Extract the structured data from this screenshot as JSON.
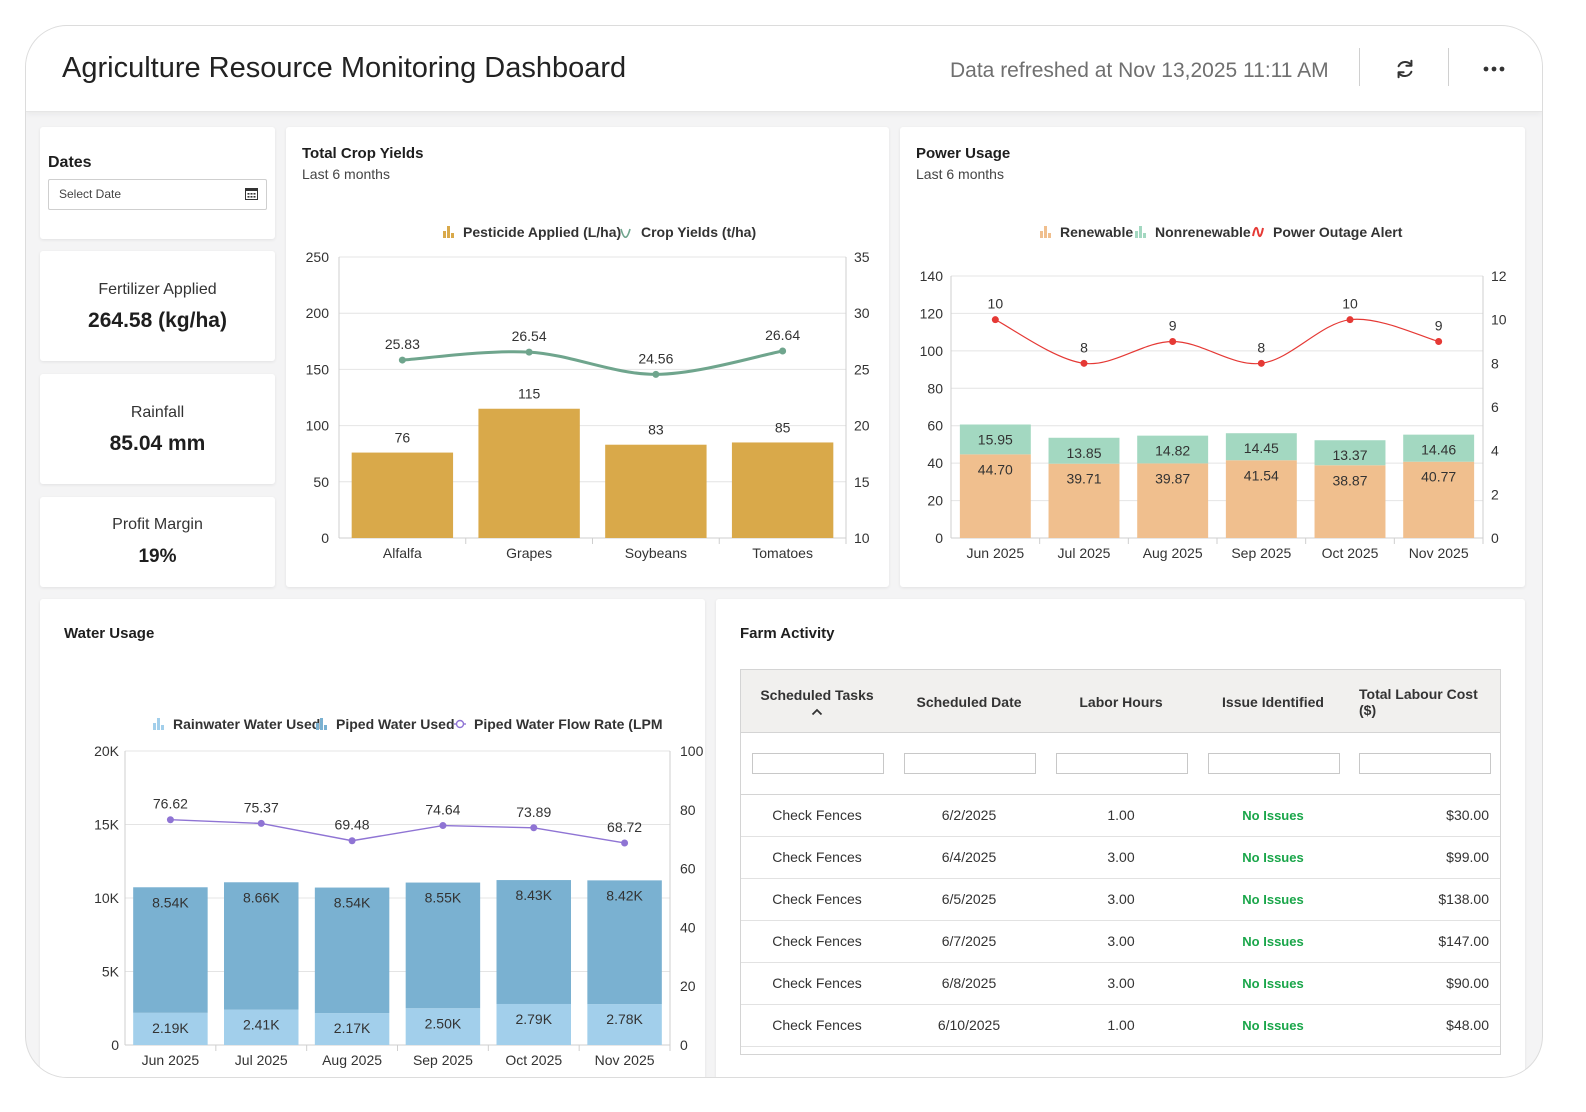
{
  "header": {
    "title": "Agriculture Resource Monitoring Dashboard",
    "refresh_text": "Data refreshed at Nov 13,2025 11:11 AM"
  },
  "dates": {
    "title": "Dates",
    "placeholder": "Select Date"
  },
  "kpis": {
    "fertilizer": {
      "label": "Fertilizer Applied",
      "value": "264.58 (kg/ha)"
    },
    "rainfall": {
      "label": "Rainfall",
      "value": "85.04 mm"
    },
    "profit": {
      "label": "Profit Margin",
      "value": "19%"
    }
  },
  "crop_yields": {
    "title": "Total Crop Yields",
    "subtitle": "Last 6 months"
  },
  "power_usage": {
    "title": "Power Usage",
    "subtitle": "Last 6 months"
  },
  "water_usage": {
    "title": "Water Usage"
  },
  "farm_activity": {
    "title": "Farm Activity",
    "columns": [
      "Scheduled Tasks",
      "Scheduled Date",
      "Labor Hours",
      "Issue Identified",
      "Total Labour Cost ($)"
    ],
    "rows": [
      [
        "Check Fences",
        "6/2/2025",
        "1.00",
        "No Issues",
        "$30.00"
      ],
      [
        "Check Fences",
        "6/4/2025",
        "3.00",
        "No Issues",
        "$99.00"
      ],
      [
        "Check Fences",
        "6/5/2025",
        "3.00",
        "No Issues",
        "$138.00"
      ],
      [
        "Check Fences",
        "6/7/2025",
        "3.00",
        "No Issues",
        "$147.00"
      ],
      [
        "Check Fences",
        "6/8/2025",
        "3.00",
        "No Issues",
        "$90.00"
      ],
      [
        "Check Fences",
        "6/10/2025",
        "1.00",
        "No Issues",
        "$48.00"
      ]
    ]
  },
  "chart_data": [
    {
      "type": "bar",
      "categories": [
        "Alfalfa",
        "Grapes",
        "Soybeans",
        "Tomatoes"
      ],
      "series": [
        {
          "name": "Pesticide Applied (L/ha)",
          "type": "bar",
          "axis": "left",
          "values": [
            76,
            115,
            83,
            85
          ],
          "color": "#d9a94a"
        },
        {
          "name": "Crop Yields (t/ha)",
          "type": "line",
          "axis": "right",
          "values": [
            25.83,
            26.54,
            24.56,
            26.64
          ],
          "color": "#6fa58d"
        }
      ],
      "y_left": {
        "min": 0,
        "max": 250,
        "ticks": [
          0,
          50,
          100,
          150,
          200,
          250
        ]
      },
      "y_right": {
        "min": 10,
        "max": 35,
        "ticks": [
          10,
          15,
          20,
          25,
          30,
          35
        ]
      },
      "legend": "top-center"
    },
    {
      "type": "bar",
      "stacked": true,
      "categories": [
        "Jun 2025",
        "Jul 2025",
        "Aug 2025",
        "Sep 2025",
        "Oct 2025",
        "Nov 2025"
      ],
      "series": [
        {
          "name": "Renewable",
          "type": "bar",
          "axis": "left",
          "values": [
            44.7,
            39.71,
            39.87,
            41.54,
            38.87,
            40.77
          ],
          "color": "#f0bf8e"
        },
        {
          "name": "Nonrenewable",
          "type": "bar",
          "axis": "left",
          "values": [
            15.95,
            13.85,
            14.82,
            14.45,
            13.37,
            14.46
          ],
          "color": "#a3d8c1"
        },
        {
          "name": "Power Outage Alert",
          "type": "line",
          "axis": "right",
          "values": [
            10,
            8,
            9,
            8,
            10,
            9
          ],
          "color": "#e53935"
        }
      ],
      "y_left": {
        "min": 0,
        "max": 140,
        "ticks": [
          0,
          20,
          40,
          60,
          80,
          100,
          120,
          140
        ]
      },
      "y_right": {
        "min": 0,
        "max": 12,
        "ticks": [
          0,
          2,
          4,
          6,
          8,
          10,
          12
        ]
      },
      "legend": "top-center"
    },
    {
      "type": "bar",
      "stacked": true,
      "categories": [
        "Jun 2025",
        "Jul 2025",
        "Aug 2025",
        "Sep 2025",
        "Oct 2025",
        "Nov 2025"
      ],
      "series": [
        {
          "name": "Rainwater Water Used",
          "type": "bar",
          "axis": "left",
          "values": [
            2190,
            2410,
            2170,
            2500,
            2790,
            2780
          ],
          "labels": [
            "2.19K",
            "2.41K",
            "2.17K",
            "2.50K",
            "2.79K",
            "2.78K"
          ],
          "color": "#a2cfeb"
        },
        {
          "name": "Piped Water Used",
          "type": "bar",
          "axis": "left",
          "values": [
            8540,
            8660,
            8540,
            8550,
            8430,
            8420
          ],
          "labels": [
            "8.54K",
            "8.66K",
            "8.54K",
            "8.55K",
            "8.43K",
            "8.42K"
          ],
          "color": "#7ab1d1"
        },
        {
          "name": "Piped Water Flow Rate (LPM",
          "type": "line",
          "axis": "right",
          "values": [
            76.62,
            75.37,
            69.48,
            74.64,
            73.89,
            68.72
          ],
          "color": "#8f74d4"
        }
      ],
      "y_left": {
        "min": 0,
        "max": 20000,
        "ticks": [
          0,
          5000,
          10000,
          15000,
          20000
        ],
        "tick_labels": [
          "0",
          "5K",
          "10K",
          "15K",
          "20K"
        ]
      },
      "y_right": {
        "min": 0,
        "max": 100,
        "ticks": [
          0,
          20,
          40,
          60,
          80,
          100
        ]
      },
      "legend": "top-center"
    }
  ]
}
